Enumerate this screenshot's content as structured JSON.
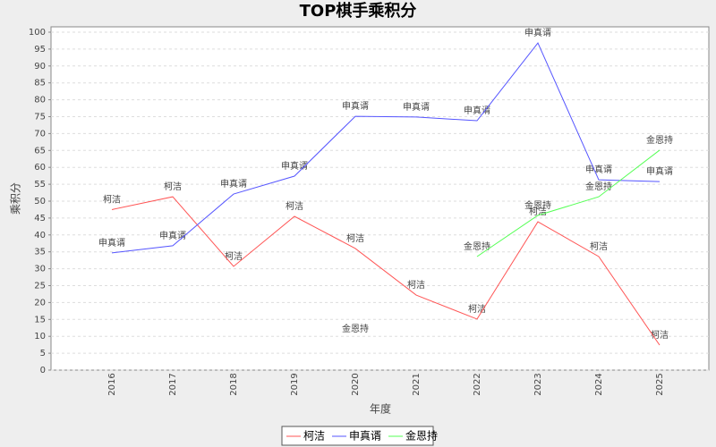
{
  "chart_data": {
    "type": "line",
    "title": "TOP棋手乘积分",
    "x_label": "年度",
    "y_label": "乘积分",
    "categories": [
      "2016",
      "2017",
      "2018",
      "2019",
      "2020",
      "2021",
      "2022",
      "2023",
      "2024",
      "2025"
    ],
    "series": [
      {
        "name": "柯洁",
        "color": "#ff5555",
        "values": [
          47.5,
          51.3,
          30.7,
          45.5,
          36,
          22.2,
          15.1,
          43.9,
          33.6,
          7.4
        ]
      },
      {
        "name": "申真谞",
        "color": "#5555ff",
        "values": [
          34.7,
          36.8,
          52.1,
          57.4,
          75.1,
          74.9,
          73.8,
          96.8,
          56.3,
          55.8
        ]
      },
      {
        "name": "金恩持",
        "color": "#55ff55",
        "values": [
          null,
          null,
          null,
          null,
          9.3,
          null,
          33.6,
          45.8,
          51.3,
          65.1
        ]
      }
    ],
    "ylim": [
      0,
      100
    ],
    "yticks": [
      0,
      5,
      10,
      15,
      20,
      25,
      30,
      35,
      40,
      45,
      50,
      55,
      60,
      65,
      70,
      75,
      80,
      85,
      90,
      95,
      100
    ],
    "grid": true,
    "legend": "bottom"
  }
}
